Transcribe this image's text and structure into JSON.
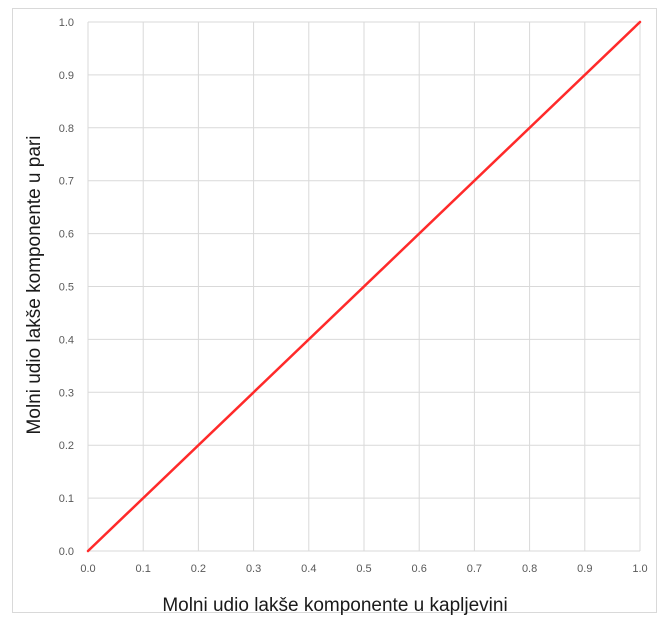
{
  "chart_data": {
    "type": "line",
    "title": "",
    "xlabel": "Molni udio lakše komponente u kapljevini",
    "ylabel": "Molni udio lakše komponente u pari",
    "xlim": [
      0,
      1
    ],
    "ylim": [
      0,
      1
    ],
    "grid": true,
    "legend": "none",
    "x_ticks": [
      "0.0",
      "0.1",
      "0.2",
      "0.3",
      "0.4",
      "0.5",
      "0.6",
      "0.7",
      "0.8",
      "0.9",
      "1.0"
    ],
    "y_ticks": [
      "0.0",
      "0.1",
      "0.2",
      "0.3",
      "0.4",
      "0.5",
      "0.6",
      "0.7",
      "0.8",
      "0.9",
      "1.0"
    ],
    "series": [
      {
        "x": [
          0.0,
          1.0
        ],
        "y": [
          0.0,
          1.0
        ],
        "color": "#ff2a2a"
      }
    ]
  }
}
